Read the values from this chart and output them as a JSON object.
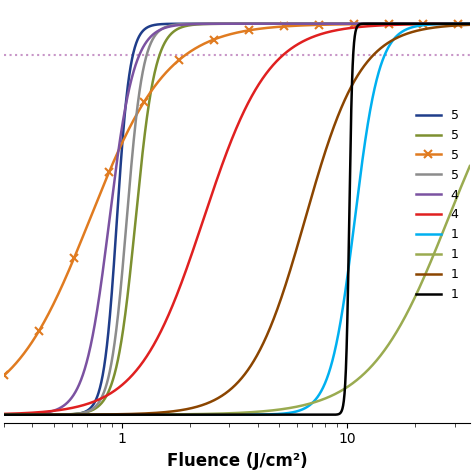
{
  "curves": [
    {
      "label": "5",
      "color": "#1f3d8a",
      "ec50": 0.95,
      "hill": 15,
      "style": "-"
    },
    {
      "label": "5",
      "color": "#7d9030",
      "ec50": 1.15,
      "hill": 10,
      "style": "-"
    },
    {
      "label": "5",
      "color": "#e07b20",
      "ec50": 0.72,
      "hill": 2.5,
      "style": "-",
      "marker": "x"
    },
    {
      "label": "5",
      "color": "#8c8c8c",
      "ec50": 1.05,
      "hill": 12,
      "style": "-"
    },
    {
      "label": "4",
      "color": "#7b52a1",
      "ec50": 0.88,
      "hill": 8,
      "style": "-"
    },
    {
      "label": "4",
      "color": "#e02020",
      "ec50": 2.3,
      "hill": 3.0,
      "style": "-"
    },
    {
      "label": "1",
      "color": "#00b0f0",
      "ec50": 10.8,
      "hill": 8,
      "style": "-"
    },
    {
      "label": "1",
      "color": "#9aab50",
      "ec50": 28.0,
      "hill": 2.5,
      "style": "-"
    },
    {
      "label": "1",
      "color": "#8b4500",
      "ec50": 6.5,
      "hill": 3.5,
      "style": "-"
    },
    {
      "label": "1",
      "color": "#000000",
      "ec50": 10.2,
      "hill": 60,
      "style": "-"
    }
  ],
  "hline_y": 0.92,
  "hline_color": "#c896c8",
  "xmin": 0.3,
  "xmax": 35,
  "ymin": -0.02,
  "ymax": 1.05,
  "xlabel": "Fluence (J/cm²)",
  "xticks": [
    1,
    10
  ],
  "background_color": "#ffffff",
  "figsize": [
    4.74,
    4.74
  ],
  "dpi": 100
}
